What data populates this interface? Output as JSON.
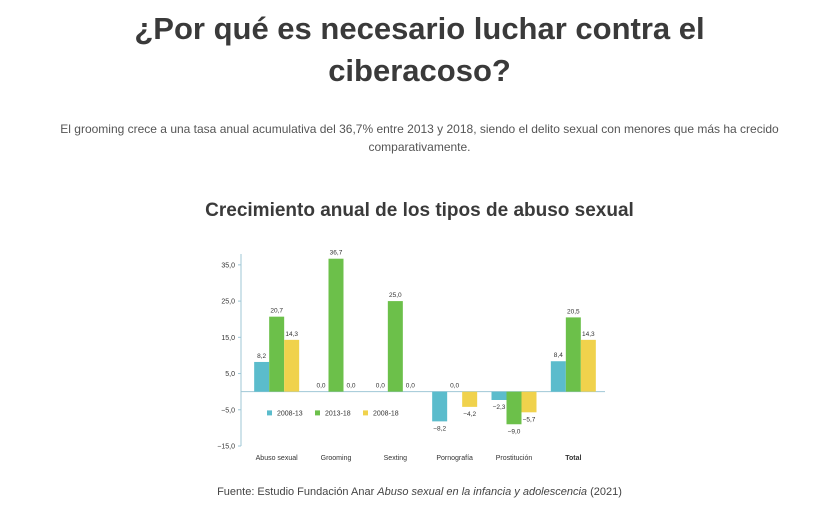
{
  "header": {
    "title_line1": "¿Por qué es necesario luchar contra el",
    "title_line2": "ciberacoso?"
  },
  "intro": {
    "line1": "El grooming crece a una tasa anual acumulativa del 36,7% entre 2013 y 2018, siendo el delito sexual con menores que más ha crecido",
    "line2": "comparativamente."
  },
  "chart_heading": "Crecimiento anual de los tipos de abuso sexual",
  "source": {
    "prefix": "Fuente: Estudio Fundación Anar ",
    "italic": "Abuso sexual en la infancia y adolescencia",
    "suffix": " (2021)"
  },
  "chart_data": {
    "type": "bar",
    "categories": [
      "Abuso sexual",
      "Grooming",
      "Sexting",
      "Pornografía",
      "Prostitución",
      "Total"
    ],
    "series": [
      {
        "name": "2008-13",
        "color": "#5bbccc",
        "values": [
          8.2,
          0.0,
          0.0,
          -8.2,
          -2.3,
          8.4
        ],
        "labels": [
          "8,2",
          "0,0",
          "0,0",
          "−8,2",
          "−2,3",
          "8,4"
        ]
      },
      {
        "name": "2013-18",
        "color": "#6cc04a",
        "values": [
          20.7,
          36.7,
          25.0,
          0.0,
          -9.0,
          20.5
        ],
        "labels": [
          "20,7",
          "36,7",
          "25,0",
          "0,0",
          "−9,0",
          "20,5"
        ]
      },
      {
        "name": "2008-18",
        "color": "#f0d24c",
        "values": [
          14.3,
          0.0,
          0.0,
          -4.2,
          -5.7,
          14.3
        ],
        "labels": [
          "14,3",
          "0,0",
          "0,0",
          "−4,2",
          "−5,7",
          "14,3"
        ]
      }
    ],
    "yticks": [
      35.0,
      25.0,
      15.0,
      5.0,
      -5.0,
      -15.0
    ],
    "ytick_labels": [
      "35,0",
      "25,0",
      "15,0",
      "5,0",
      "−5,0",
      "−15,0"
    ],
    "ylim": [
      -15,
      38
    ],
    "bold_category": "Total",
    "legend_position": "inside-lower-left"
  }
}
